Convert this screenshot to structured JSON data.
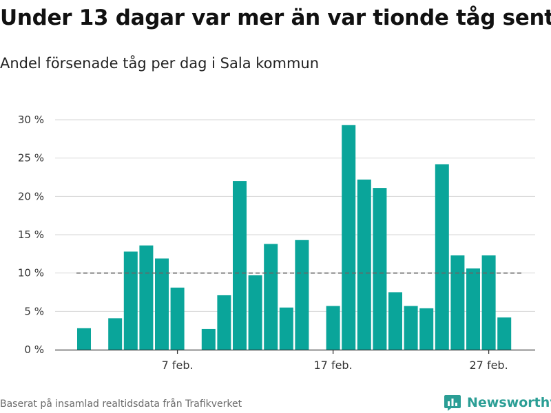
{
  "header": {
    "title": "Under 13 dagar var mer än var tionde tåg sent",
    "subtitle": "Andel försenade tåg per dag i Sala kommun"
  },
  "footer": {
    "source": "Baserat på insamlad realtidsdata från Trafikverket",
    "brand": "Newsworthy"
  },
  "colors": {
    "bar": "#0aa59a",
    "grid": "#d6d6d6",
    "reference_line": "#666666",
    "axis": "#333333",
    "brand": "#2b9e95"
  },
  "icons": {
    "brand_icon": "bar-chart-bubble-icon"
  },
  "chart_data": {
    "type": "bar",
    "title": "Under 13 dagar var mer än var tionde tåg sent",
    "subtitle": "Andel försenade tåg per dag i Sala kommun",
    "xlabel": "",
    "ylabel": "",
    "ylim": [
      0,
      30
    ],
    "y_ticks": [
      0,
      5,
      10,
      15,
      20,
      25,
      30
    ],
    "y_tick_labels": [
      "0 %",
      "5 %",
      "10 %",
      "15 %",
      "20 %",
      "25 %",
      "30 %"
    ],
    "x_tick_labels": [
      {
        "label": "7 feb.",
        "day": 7
      },
      {
        "label": "17 feb.",
        "day": 17
      },
      {
        "label": "27 feb.",
        "day": 27
      }
    ],
    "x_range_days": [
      0,
      30
    ],
    "reference_line": {
      "value": 10,
      "style": "dashed",
      "from_day": 1,
      "to_day": 29
    },
    "grid": true,
    "legend": "none",
    "categories": [
      "1 feb.",
      "2 feb.",
      "3 feb.",
      "4 feb.",
      "5 feb.",
      "6 feb.",
      "7 feb.",
      "8 feb.",
      "9 feb.",
      "10 feb.",
      "11 feb.",
      "12 feb.",
      "13 feb.",
      "14 feb.",
      "15 feb.",
      "16 feb.",
      "17 feb.",
      "18 feb.",
      "19 feb.",
      "20 feb.",
      "21 feb.",
      "22 feb.",
      "23 feb.",
      "24 feb.",
      "25 feb.",
      "26 feb.",
      "27 feb.",
      "28 feb."
    ],
    "days": [
      1,
      2,
      3,
      4,
      5,
      6,
      7,
      8,
      9,
      10,
      11,
      12,
      13,
      14,
      15,
      16,
      17,
      18,
      19,
      20,
      21,
      22,
      23,
      24,
      25,
      26,
      27,
      28
    ],
    "values": [
      2.8,
      null,
      4.1,
      12.8,
      13.6,
      11.9,
      8.1,
      null,
      2.7,
      7.1,
      22.0,
      9.7,
      13.8,
      5.5,
      14.3,
      null,
      5.7,
      29.3,
      22.2,
      21.1,
      7.5,
      5.7,
      5.4,
      24.2,
      12.3,
      10.6,
      12.3,
      4.2
    ]
  }
}
